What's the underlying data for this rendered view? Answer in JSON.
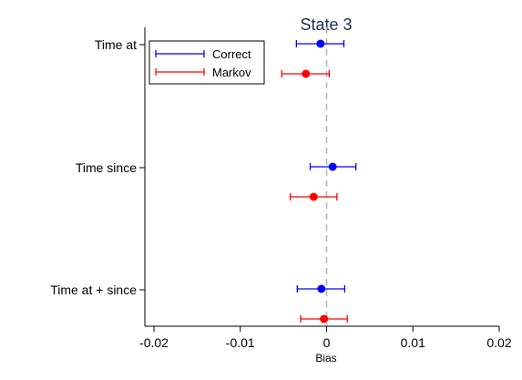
{
  "chart_data": {
    "type": "forest",
    "title": "State 3",
    "xlabel": "Bias",
    "ylabel": "",
    "xlim": [
      -0.02,
      0.02
    ],
    "xticks": [
      -0.02,
      -0.01,
      0,
      0.01,
      0.02
    ],
    "xtick_labels": [
      "-0.02",
      "-0.01",
      "0",
      "0.01",
      "0.02"
    ],
    "reference_line": {
      "x": 0,
      "style": "dashed",
      "color": "#b5b5b5"
    },
    "categories": [
      "Time at",
      "Time since",
      "Time at + since"
    ],
    "series": [
      {
        "name": "Correct",
        "color": "#0000ff",
        "points": [
          {
            "category": "Time at",
            "estimate": -0.0007,
            "lower": -0.0035,
            "upper": 0.002
          },
          {
            "category": "Time since",
            "estimate": 0.0007,
            "lower": -0.0019,
            "upper": 0.0034
          },
          {
            "category": "Time at + since",
            "estimate": -0.0006,
            "lower": -0.0034,
            "upper": 0.0021
          }
        ]
      },
      {
        "name": "Markov",
        "color": "#ff0000",
        "points": [
          {
            "category": "Time at",
            "estimate": -0.0024,
            "lower": -0.0052,
            "upper": 0.0003
          },
          {
            "category": "Time since",
            "estimate": -0.0015,
            "lower": -0.0042,
            "upper": 0.0012
          },
          {
            "category": "Time at + since",
            "estimate": -0.0003,
            "lower": -0.003,
            "upper": 0.0024
          }
        ]
      }
    ],
    "legend": {
      "position": "top-left",
      "entries": [
        "Correct",
        "Markov"
      ]
    },
    "grid": false
  }
}
